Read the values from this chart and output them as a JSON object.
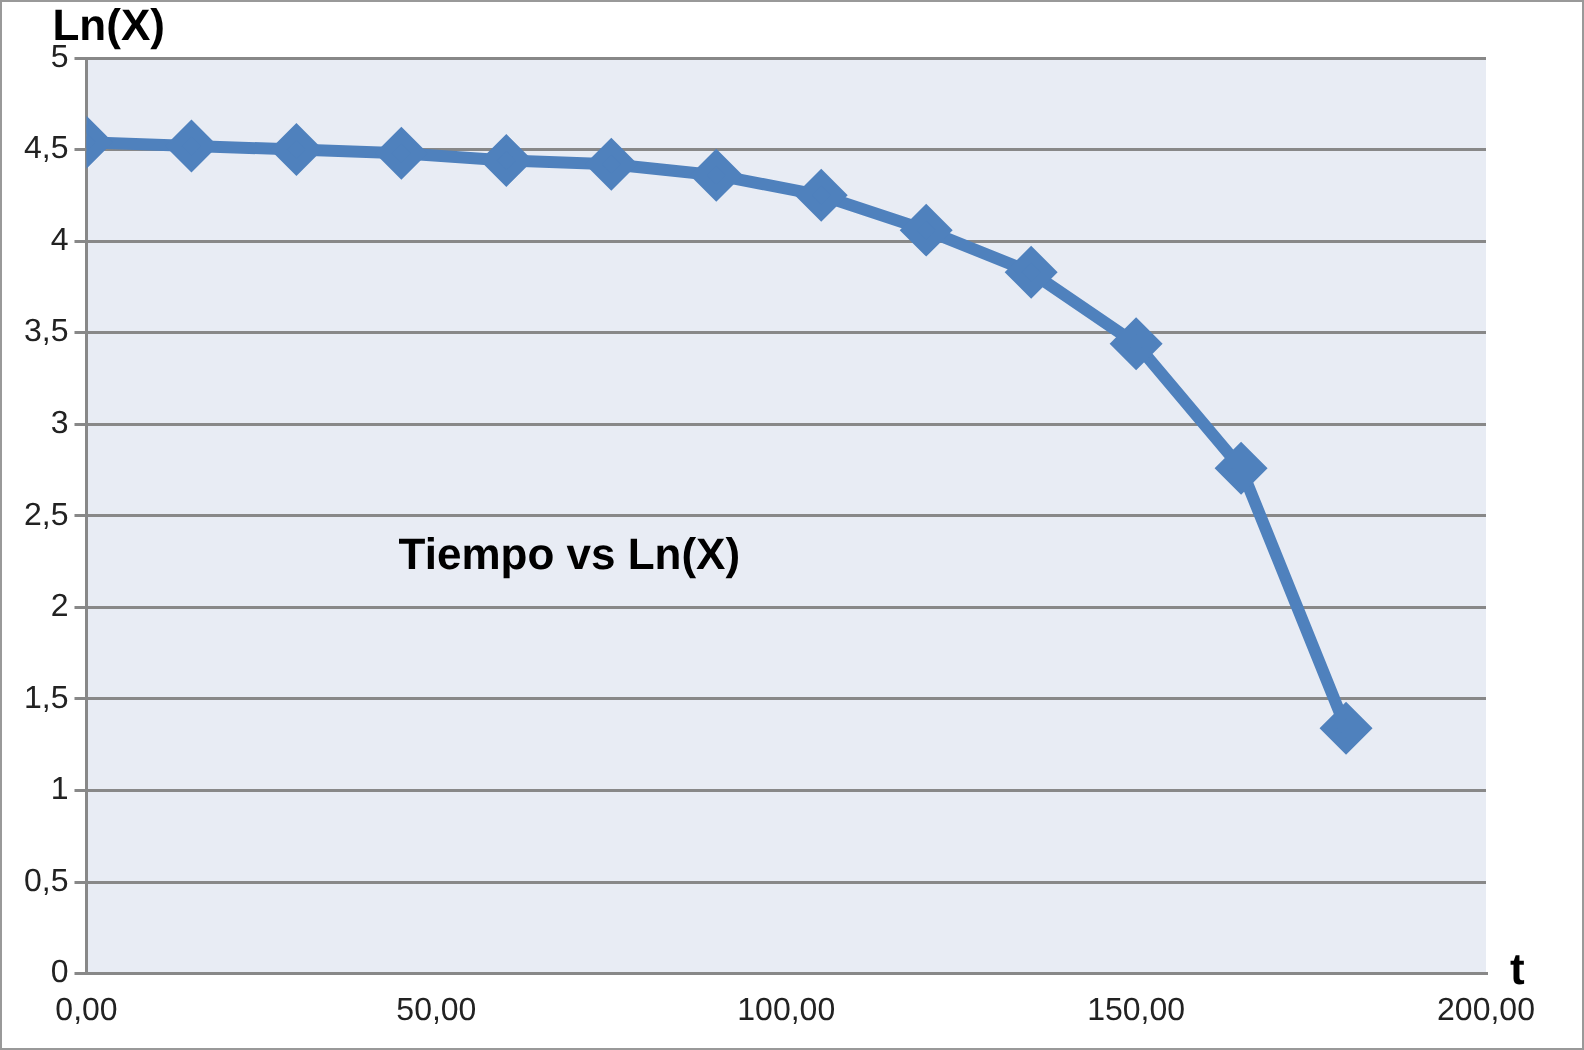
{
  "chart_data": {
    "type": "line",
    "title": "Tiempo vs Ln(X)",
    "xlabel": "t",
    "ylabel": "Ln(X)",
    "x": [
      0,
      15,
      30,
      45,
      60,
      75,
      90,
      105,
      120,
      135,
      150,
      165,
      180
    ],
    "series": [
      {
        "color": "#4f81bd",
        "values": [
          4.54,
          4.52,
          4.5,
          4.48,
          4.44,
          4.42,
          4.36,
          4.25,
          4.06,
          3.83,
          3.44,
          2.76,
          1.34
        ]
      }
    ],
    "xlim": [
      0,
      200
    ],
    "ylim": [
      0,
      5
    ],
    "xticks": [
      {
        "value": 0,
        "label": "0,00"
      },
      {
        "value": 50,
        "label": "50,00"
      },
      {
        "value": 100,
        "label": "100,00"
      },
      {
        "value": 150,
        "label": "150,00"
      },
      {
        "value": 200,
        "label": "200,00"
      }
    ],
    "yticks": [
      0,
      {
        "value": 0.5,
        "label": "0,5"
      },
      1,
      {
        "value": 1.5,
        "label": "1,5"
      },
      2,
      {
        "value": 2.5,
        "label": "2,5"
      },
      3,
      {
        "value": 3.5,
        "label": "3,5"
      },
      4,
      {
        "value": 4.5,
        "label": "4,5"
      },
      5
    ],
    "grid": "y",
    "legend": false,
    "marker": "diamond",
    "line_style": "solid"
  }
}
